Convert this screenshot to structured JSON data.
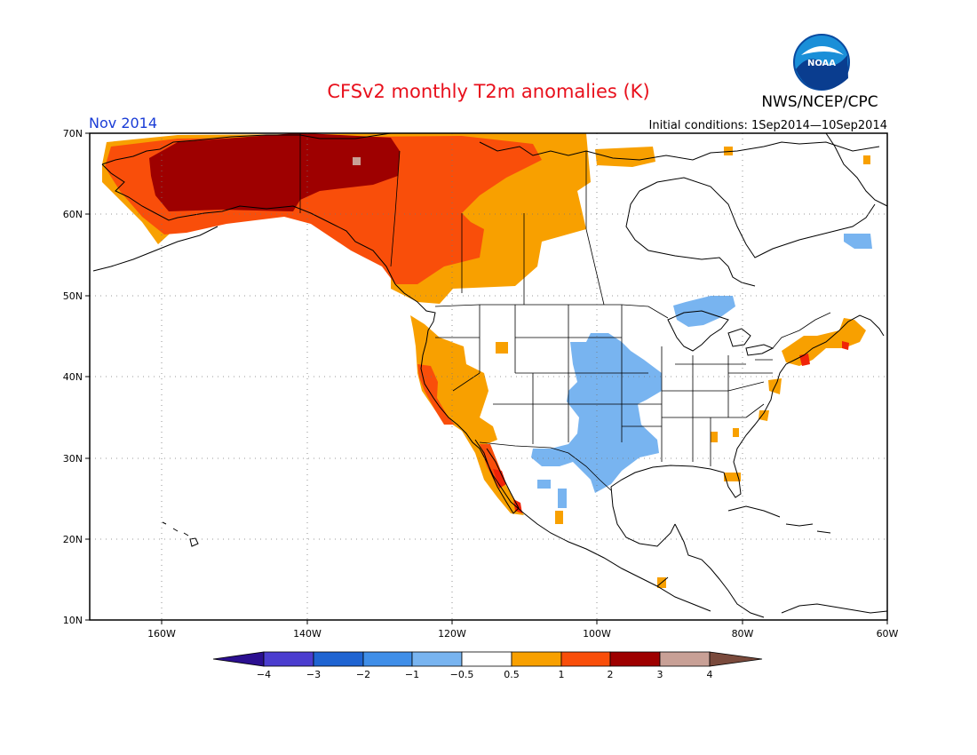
{
  "title": "CFSv2 monthly T2m anomalies (K)",
  "month_label": "Nov 2014",
  "agency": "NWS/NCEP/CPC",
  "logo_text": "NOAA",
  "initial_conditions": "Initial conditions: 1Sep2014—10Sep2014",
  "colors": {
    "title": "#e8101c",
    "month_label": "#1a3cd6",
    "anom_m4": "#2b0f90",
    "anom_m3": "#4b3dcf",
    "anom_m2": "#1f64d2",
    "anom_m1": "#3f8ee8",
    "anom_m05": "#78b4f0",
    "anom_p05": "#f8a000",
    "anom_p1": "#f94e0a",
    "anom_p2": "#f02308",
    "anom_p3": "#9e0000",
    "anom_p4": "#c8a096",
    "anom_p4_arrow": "#7a4a3c"
  },
  "map": {
    "lat_ticks": [
      "70N",
      "60N",
      "50N",
      "40N",
      "30N",
      "20N",
      "10N"
    ],
    "lon_ticks": [
      "160W",
      "140W",
      "120W",
      "100W",
      "80W",
      "60W"
    ],
    "lon_range": [
      -170,
      -60
    ],
    "lat_range": [
      10,
      70
    ]
  },
  "colorbar": {
    "labels": [
      "−4",
      "−3",
      "−2",
      "−1",
      "−0.5",
      "0.5",
      "1",
      "2",
      "3",
      "4"
    ]
  }
}
